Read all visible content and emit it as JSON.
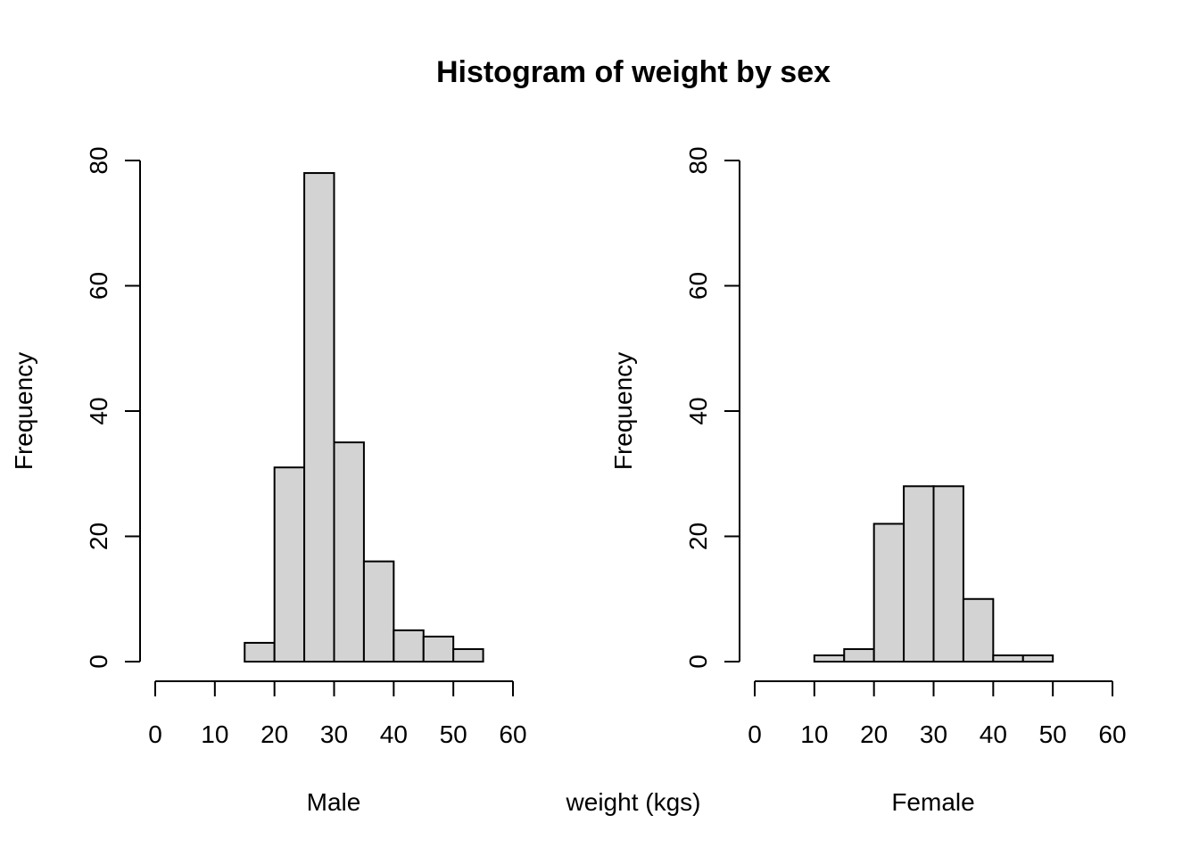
{
  "title": "Histogram of weight by sex",
  "shared_xlabel": "weight (kgs)",
  "colors": {
    "bar_fill": "#d3d3d3",
    "bar_stroke": "#000000",
    "background": "#ffffff"
  },
  "chart_data": [
    {
      "type": "bar",
      "panel": "left",
      "xlabel": "Male",
      "ylabel": "Frequency",
      "bin_width": 5,
      "bins": [
        {
          "start": 15,
          "end": 20,
          "count": 3
        },
        {
          "start": 20,
          "end": 25,
          "count": 31
        },
        {
          "start": 25,
          "end": 30,
          "count": 78
        },
        {
          "start": 30,
          "end": 35,
          "count": 35
        },
        {
          "start": 35,
          "end": 40,
          "count": 16
        },
        {
          "start": 40,
          "end": 45,
          "count": 5
        },
        {
          "start": 45,
          "end": 50,
          "count": 4
        },
        {
          "start": 50,
          "end": 55,
          "count": 2
        }
      ],
      "xlim": [
        0,
        60
      ],
      "ylim": [
        0,
        80
      ],
      "xticks": [
        0,
        10,
        20,
        30,
        40,
        50,
        60
      ],
      "yticks": [
        0,
        20,
        40,
        60,
        80
      ],
      "grid": false
    },
    {
      "type": "bar",
      "panel": "right",
      "xlabel": "Female",
      "ylabel": "Frequency",
      "bin_width": 5,
      "bins": [
        {
          "start": 10,
          "end": 15,
          "count": 1
        },
        {
          "start": 15,
          "end": 20,
          "count": 2
        },
        {
          "start": 20,
          "end": 25,
          "count": 22
        },
        {
          "start": 25,
          "end": 30,
          "count": 28
        },
        {
          "start": 30,
          "end": 35,
          "count": 28
        },
        {
          "start": 35,
          "end": 40,
          "count": 10
        },
        {
          "start": 40,
          "end": 45,
          "count": 1
        },
        {
          "start": 45,
          "end": 50,
          "count": 1
        }
      ],
      "xlim": [
        0,
        60
      ],
      "ylim": [
        0,
        80
      ],
      "xticks": [
        0,
        10,
        20,
        30,
        40,
        50,
        60
      ],
      "yticks": [
        0,
        20,
        40,
        60,
        80
      ],
      "grid": false
    }
  ]
}
